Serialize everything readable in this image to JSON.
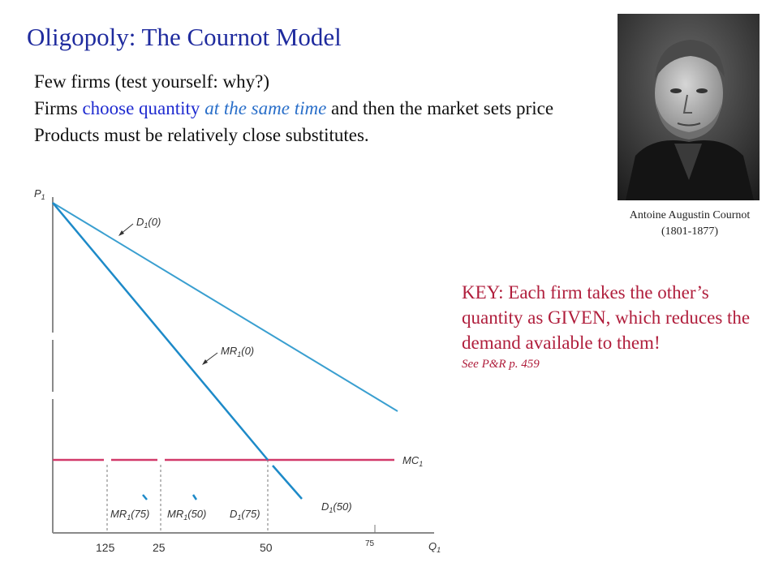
{
  "title": "Oligopoly: The Cournot Model",
  "bullets": {
    "line1": "Few firms (test yourself: why?)",
    "line2_a": "Firms ",
    "line2_blue": "choose quantity",
    "line2_sp": " ",
    "line2_italic": "at the same time",
    "line2_b": " and then the market sets price",
    "line3": "Products must be relatively close substitutes."
  },
  "portrait": {
    "icon": "portrait-photo",
    "caption_name": "Antoine Augustin Cournot",
    "caption_years": "(1801-1877)"
  },
  "key": {
    "text": "KEY: Each firm takes the other’s quantity as GIVEN, which reduces the demand available to them!",
    "reference": "See P&R p. 459"
  },
  "diagram": {
    "y_axis_label": "P",
    "y_axis_sub": "1",
    "x_axis_label": "Q",
    "x_axis_sub": "1",
    "x_ticks": [
      "125",
      "25",
      "50",
      "75"
    ],
    "curves": {
      "d0": {
        "main": "D",
        "sub": "1",
        "arg": "(0)"
      },
      "mr0": {
        "main": "MR",
        "sub": "1",
        "arg": "(0)"
      },
      "mc": {
        "main": "MC",
        "sub": "1"
      },
      "mr75": {
        "main": "MR",
        "sub": "1",
        "arg": "(75)"
      },
      "mr50": {
        "main": "MR",
        "sub": "1",
        "arg": "(50)"
      },
      "d75": {
        "main": "D",
        "sub": "1",
        "arg": "(75)"
      },
      "d50": {
        "main": "D",
        "sub": "1",
        "arg": "(50)"
      }
    },
    "colors": {
      "demand": "#3a9fd0",
      "mr": "#1d8ac8",
      "mc": "#d23a6a",
      "axis": "#8a8a8a"
    }
  }
}
